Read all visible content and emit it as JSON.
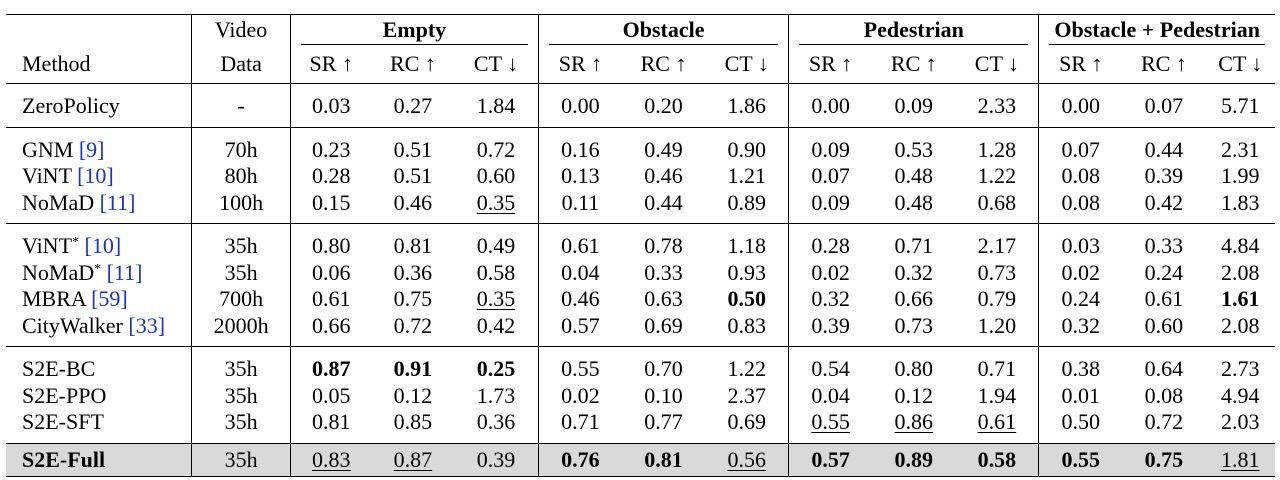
{
  "headers": {
    "method": "Method",
    "video_data_line1": "Video",
    "video_data_line2": "Data",
    "groups": [
      "Empty",
      "Obstacle",
      "Pedestrian",
      "Obstacle + Pedestrian"
    ],
    "metrics": [
      "SR ↑",
      "RC ↑",
      "CT ↓"
    ]
  },
  "rows": {
    "zeropolicy": {
      "method": "ZeroPolicy",
      "data": "-",
      "vals": [
        "0.03",
        "0.27",
        "1.84",
        "0.00",
        "0.20",
        "1.86",
        "0.00",
        "0.09",
        "2.33",
        "0.00",
        "0.07",
        "5.71"
      ]
    },
    "gnm": {
      "method": "GNM ",
      "cite": "[9]",
      "data": "70h",
      "vals": [
        "0.23",
        "0.51",
        "0.72",
        "0.16",
        "0.49",
        "0.90",
        "0.09",
        "0.53",
        "1.28",
        "0.07",
        "0.44",
        "2.31"
      ]
    },
    "vint": {
      "method": "ViNT ",
      "cite": "[10]",
      "data": "80h",
      "vals": [
        "0.28",
        "0.51",
        "0.60",
        "0.13",
        "0.46",
        "1.21",
        "0.07",
        "0.48",
        "1.22",
        "0.08",
        "0.39",
        "1.99"
      ]
    },
    "nomad": {
      "method": "NoMaD ",
      "cite": "[11]",
      "data": "100h",
      "vals": [
        "0.15",
        "0.46",
        "0.35",
        "0.11",
        "0.44",
        "0.89",
        "0.09",
        "0.48",
        "0.68",
        "0.08",
        "0.42",
        "1.83"
      ]
    },
    "vint_star": {
      "method": "ViNT",
      "sup": "*",
      "cite": "[10]",
      "data": "35h",
      "vals": [
        "0.80",
        "0.81",
        "0.49",
        "0.61",
        "0.78",
        "1.18",
        "0.28",
        "0.71",
        "2.17",
        "0.03",
        "0.33",
        "4.84"
      ]
    },
    "nomad_star": {
      "method": "NoMaD",
      "sup": "*",
      "cite": "[11]",
      "data": "35h",
      "vals": [
        "0.06",
        "0.36",
        "0.58",
        "0.04",
        "0.33",
        "0.93",
        "0.02",
        "0.32",
        "0.73",
        "0.02",
        "0.24",
        "2.08"
      ]
    },
    "mbra": {
      "method": "MBRA ",
      "cite": "[59]",
      "data": "700h",
      "vals": [
        "0.61",
        "0.75",
        "0.35",
        "0.46",
        "0.63",
        "0.50",
        "0.32",
        "0.66",
        "0.79",
        "0.24",
        "0.61",
        "1.61"
      ]
    },
    "citywalker": {
      "method": "CityWalker ",
      "cite": "[33]",
      "data": "2000h",
      "vals": [
        "0.66",
        "0.72",
        "0.42",
        "0.57",
        "0.69",
        "0.83",
        "0.39",
        "0.73",
        "1.20",
        "0.32",
        "0.60",
        "2.08"
      ]
    },
    "s2e_bc": {
      "method": "S2E-BC",
      "data": "35h",
      "vals": [
        "0.87",
        "0.91",
        "0.25",
        "0.55",
        "0.70",
        "1.22",
        "0.54",
        "0.80",
        "0.71",
        "0.38",
        "0.64",
        "2.73"
      ]
    },
    "s2e_ppo": {
      "method": "S2E-PPO",
      "data": "35h",
      "vals": [
        "0.05",
        "0.12",
        "1.73",
        "0.02",
        "0.10",
        "2.37",
        "0.04",
        "0.12",
        "1.94",
        "0.01",
        "0.08",
        "4.94"
      ]
    },
    "s2e_sft": {
      "method": "S2E-SFT",
      "data": "35h",
      "vals": [
        "0.81",
        "0.85",
        "0.36",
        "0.71",
        "0.77",
        "0.69",
        "0.55",
        "0.86",
        "0.61",
        "0.50",
        "0.72",
        "2.03"
      ]
    },
    "s2e_full": {
      "method": "S2E-Full",
      "data": "35h",
      "vals": [
        "0.83",
        "0.87",
        "0.39",
        "0.76",
        "0.81",
        "0.56",
        "0.57",
        "0.89",
        "0.58",
        "0.55",
        "0.75",
        "1.81"
      ]
    }
  }
}
